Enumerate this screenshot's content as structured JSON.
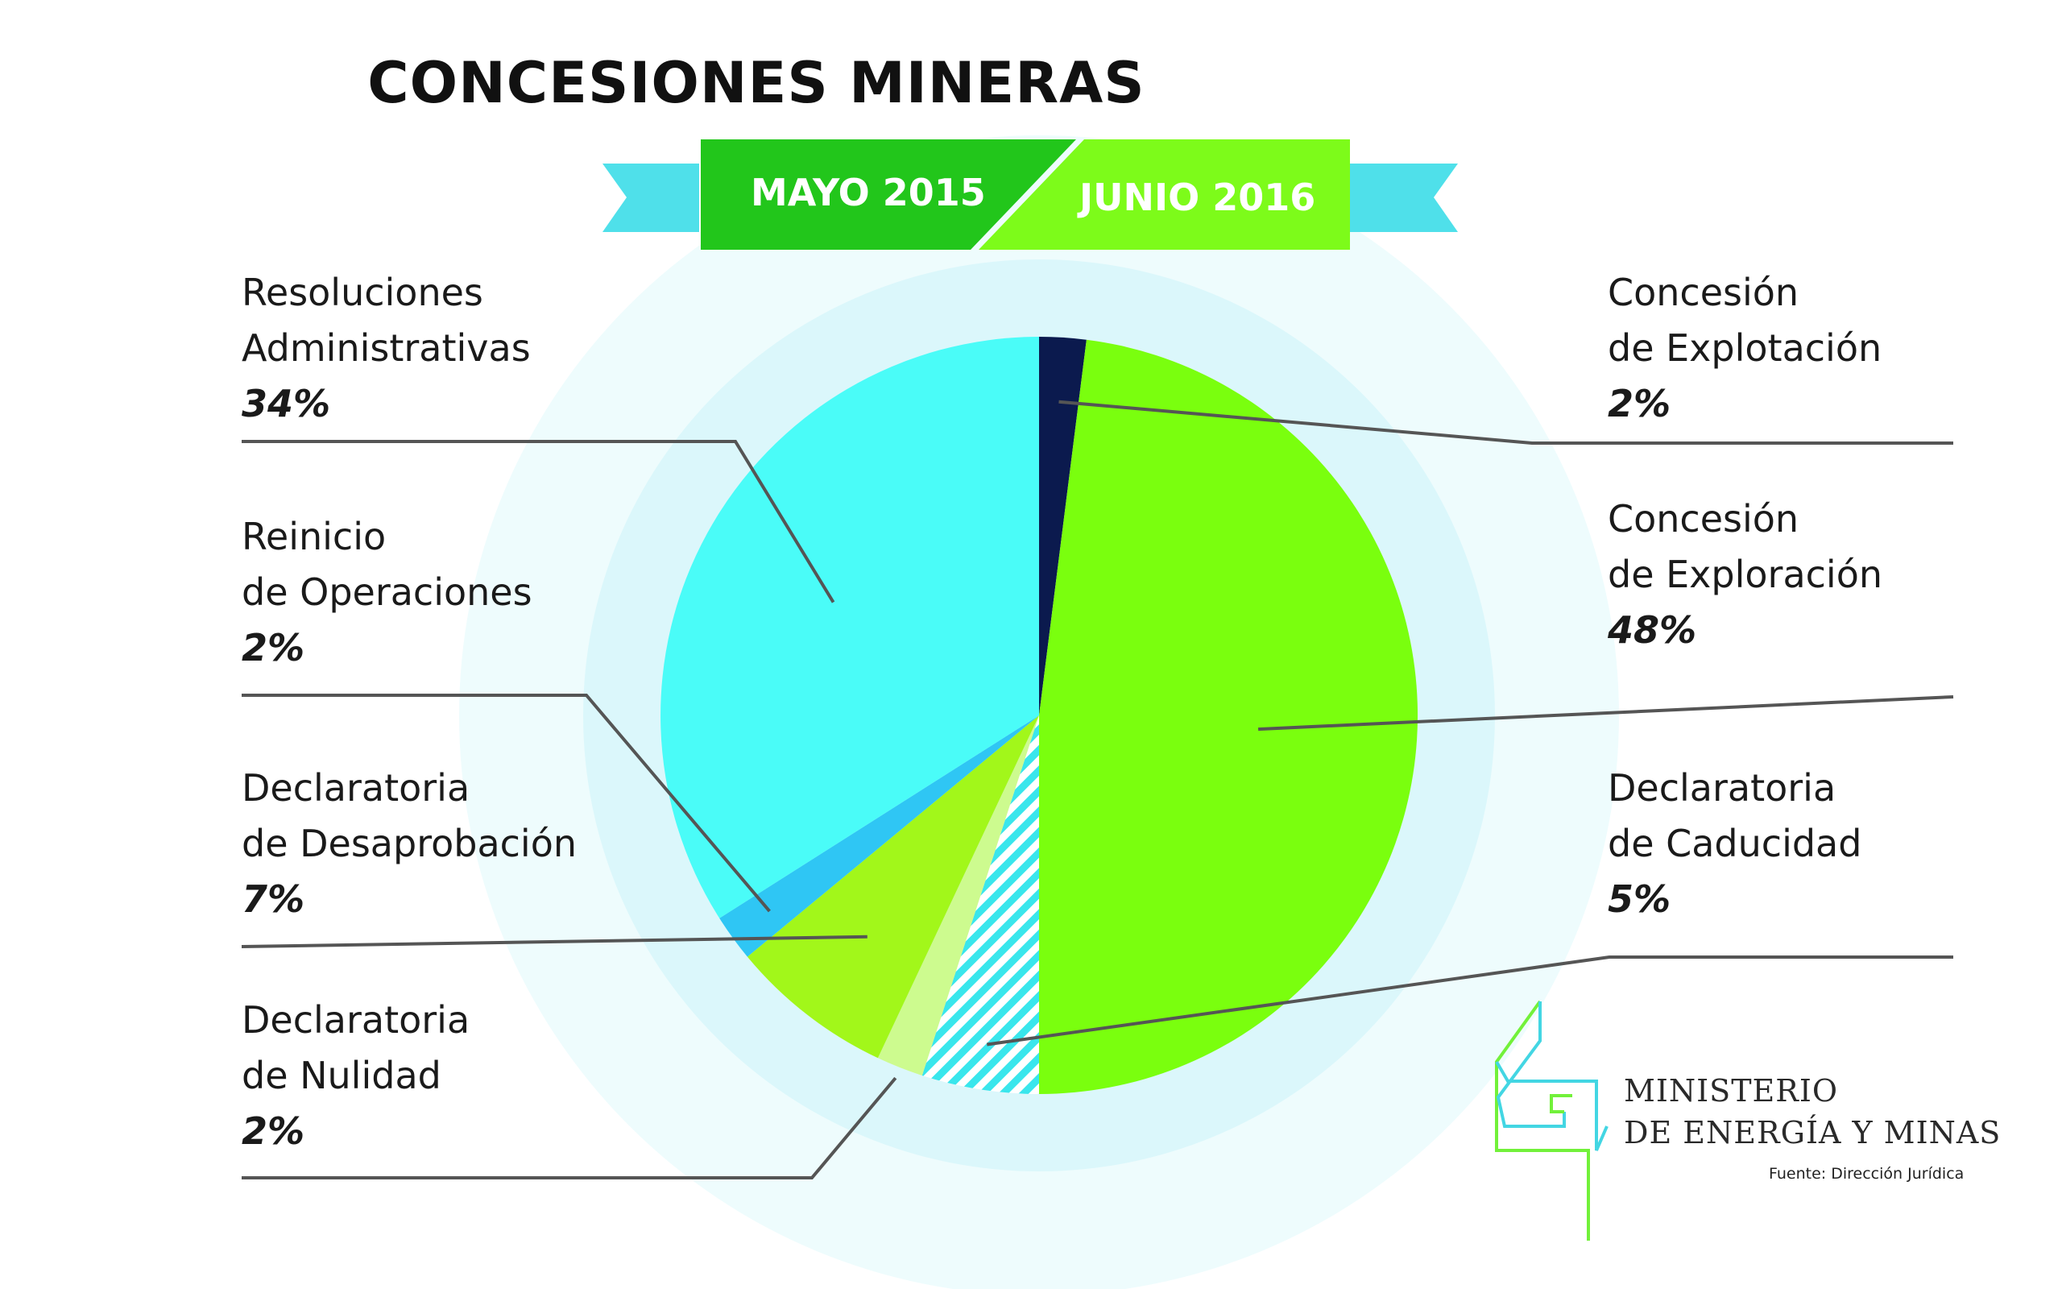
{
  "title": "CONCESIONES MINERAS",
  "period": {
    "from": "MAYO 2015",
    "to": "JUNIO 2016"
  },
  "colors": {
    "banner_dark": "#22c61b",
    "banner_light": "#7dfb1a",
    "ribbon": "#4fe0ea",
    "halo_outer": "#eefcfd",
    "halo_inner": "#dbf7fb",
    "leader": "#555555"
  },
  "chart_data": {
    "type": "pie",
    "title": "CONCESIONES MINERAS",
    "slices": [
      {
        "id": "explotacion",
        "line1": "Concesión",
        "line2": "de Explotación",
        "pct_label": "2%",
        "value": 2,
        "color": "#0b1a4e"
      },
      {
        "id": "exploracion",
        "line1": "Concesión",
        "line2": "de Exploración",
        "pct_label": "48%",
        "value": 48,
        "color": "#7aff0e"
      },
      {
        "id": "caducidad",
        "line1": "Declaratoria",
        "line2": "de Caducidad",
        "pct_label": "5%",
        "value": 5,
        "color": "#39e6ec",
        "pattern": "hatch"
      },
      {
        "id": "nulidad",
        "line1": "Declaratoria",
        "line2": "de Nulidad",
        "pct_label": "2%",
        "value": 2,
        "color": "#cdfb8f"
      },
      {
        "id": "desaprobacion",
        "line1": "Declaratoria",
        "line2": "de Desaprobación",
        "pct_label": "7%",
        "value": 7,
        "color": "#a2f71a"
      },
      {
        "id": "reinicio",
        "line1": "Reinicio",
        "line2": "de Operaciones",
        "pct_label": "2%",
        "value": 2,
        "color": "#2fc6f4"
      },
      {
        "id": "resoluciones",
        "line1": "Resoluciones",
        "line2": "Administrativas",
        "pct_label": "34%",
        "value": 34,
        "color": "#4afcf8"
      }
    ]
  },
  "logo": {
    "line1": "MINISTERIO",
    "line2": "DE ENERGÍA Y MINAS",
    "icon": "ministerio-logo-icon"
  },
  "source": "Fuente: Dirección Jurídica"
}
